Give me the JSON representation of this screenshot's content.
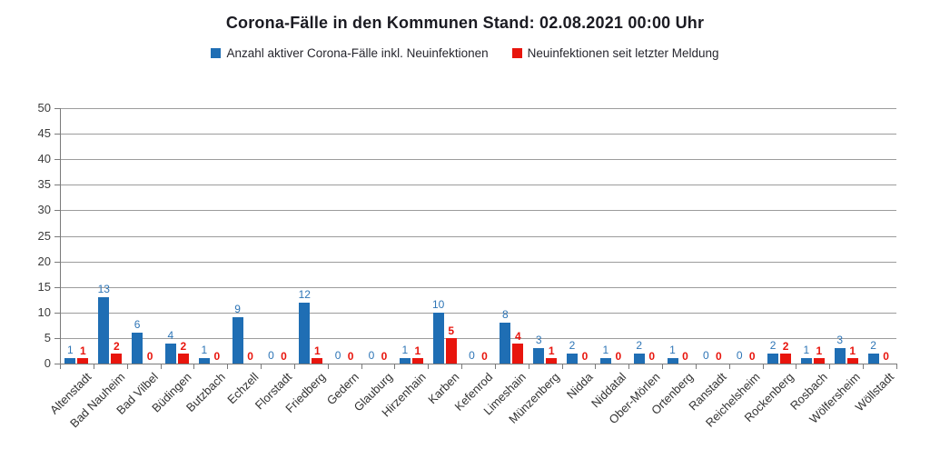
{
  "title": "Corona-Fälle in den Kommunen Stand: 02.08.2021 00:00 Uhr",
  "legend": {
    "items": [
      {
        "label": "Anzahl aktiver Corona-Fälle inkl. Neuinfektionen",
        "color": "#1f6eb4"
      },
      {
        "label": "Neuinfektionen seit letzter Meldung",
        "color": "#e8150d"
      }
    ]
  },
  "chart_data": {
    "type": "bar",
    "title": "Corona-Fälle in den Kommunen Stand: 02.08.2021 00:00 Uhr",
    "categories": [
      "Altenstadt",
      "Bad Nauheim",
      "Bad Vilbel",
      "Büdingen",
      "Butzbach",
      "Echzell",
      "Florstadt",
      "Friedberg",
      "Gedern",
      "Glauburg",
      "Hirzenhain",
      "Karben",
      "Kefenrod",
      "Limeshain",
      "Münzenberg",
      "Nidda",
      "Niddatal",
      "Ober-Mörlen",
      "Ortenberg",
      "Ranstadt",
      "Reichelsheim",
      "Rockenberg",
      "Rosbach",
      "Wölfersheim",
      "Wöllstadt"
    ],
    "series": [
      {
        "name": "Anzahl aktiver Corona-Fälle inkl. Neuinfektionen",
        "color": "#1f6eb4",
        "label_color": "#2e75b6",
        "values": [
          1,
          13,
          6,
          4,
          1,
          9,
          0,
          12,
          0,
          0,
          1,
          10,
          0,
          8,
          3,
          2,
          1,
          2,
          1,
          0,
          0,
          2,
          1,
          3,
          2
        ]
      },
      {
        "name": "Neuinfektionen seit letzter Meldung",
        "color": "#e8150d",
        "label_color": "#e8150d",
        "values": [
          1,
          2,
          0,
          2,
          0,
          0,
          0,
          1,
          0,
          0,
          1,
          5,
          0,
          4,
          1,
          0,
          0,
          0,
          0,
          0,
          0,
          2,
          1,
          1,
          0
        ]
      }
    ],
    "xlabel": "",
    "ylabel": "",
    "ylim": [
      0,
      50
    ],
    "ytick_step": 5,
    "y_ticks": [
      0,
      5,
      10,
      15,
      20,
      25,
      30,
      35,
      40,
      45,
      50
    ],
    "grid": true,
    "legend_position": "top",
    "show_data_labels": true
  }
}
